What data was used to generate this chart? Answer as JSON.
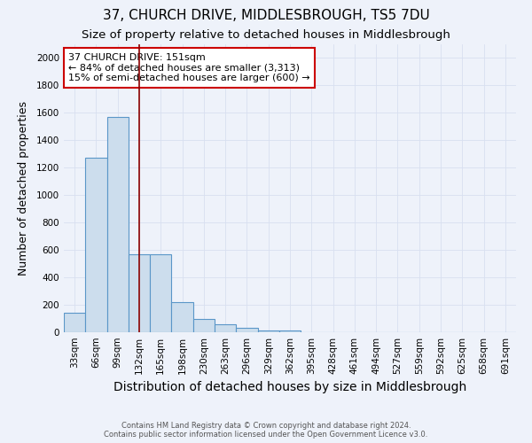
{
  "title": "37, CHURCH DRIVE, MIDDLESBROUGH, TS5 7DU",
  "subtitle": "Size of property relative to detached houses in Middlesbrough",
  "xlabel": "Distribution of detached houses by size in Middlesbrough",
  "ylabel": "Number of detached properties",
  "categories": [
    "33sqm",
    "66sqm",
    "99sqm",
    "132sqm",
    "165sqm",
    "198sqm",
    "230sqm",
    "263sqm",
    "296sqm",
    "329sqm",
    "362sqm",
    "395sqm",
    "428sqm",
    "461sqm",
    "494sqm",
    "527sqm",
    "559sqm",
    "592sqm",
    "625sqm",
    "658sqm",
    "691sqm"
  ],
  "values": [
    140,
    1270,
    1570,
    570,
    570,
    220,
    100,
    55,
    30,
    15,
    15,
    0,
    0,
    0,
    0,
    0,
    0,
    0,
    0,
    0,
    0
  ],
  "bar_color": "#ccdded",
  "bar_edge_color": "#5a96c8",
  "background_color": "#eef2fa",
  "grid_color": "#d8dff0",
  "vline_x": 3.0,
  "vline_color": "#8b0000",
  "annotation_line1": "37 CHURCH DRIVE: 151sqm",
  "annotation_line2": "← 84% of detached houses are smaller (3,313)",
  "annotation_line3": "15% of semi-detached houses are larger (600) →",
  "annotation_box_color": "#ffffff",
  "annotation_box_edge_color": "#cc0000",
  "ylim": [
    0,
    2100
  ],
  "yticks": [
    0,
    200,
    400,
    600,
    800,
    1000,
    1200,
    1400,
    1600,
    1800,
    2000
  ],
  "footer_line1": "Contains HM Land Registry data © Crown copyright and database right 2024.",
  "footer_line2": "Contains public sector information licensed under the Open Government Licence v3.0.",
  "title_fontsize": 11,
  "subtitle_fontsize": 9.5,
  "xlabel_fontsize": 10,
  "ylabel_fontsize": 9,
  "tick_fontsize": 7.5,
  "annotation_fontsize": 8,
  "footer_fontsize": 6
}
